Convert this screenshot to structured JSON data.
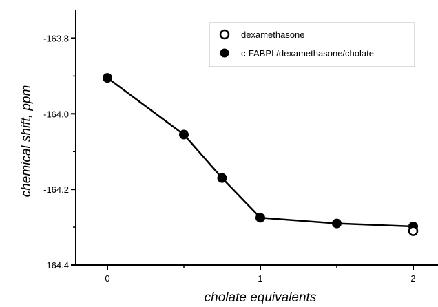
{
  "chart_data": {
    "type": "scatter",
    "title": "",
    "xlabel": "cholate equivalents",
    "ylabel": "chemical shift, ppm",
    "xlim": [
      -0.1,
      2.15
    ],
    "ylim": [
      -164.4,
      -163.75
    ],
    "x_ticks": [
      0,
      1,
      2
    ],
    "x_tick_labels": [
      "0",
      "1",
      "2"
    ],
    "y_ticks": [
      -164.4,
      -164.2,
      -164.0,
      -163.8
    ],
    "y_tick_labels": [
      "-164.4",
      "-164.2",
      "-164.0",
      "-163.8"
    ],
    "y_minor_ticks": [
      -164.3,
      -164.1,
      -163.9
    ],
    "x_minor_ticks": [
      0.5,
      1.5
    ],
    "grid": false,
    "legend_position": "top-right",
    "series": [
      {
        "name": "dexamethasone",
        "marker": "open-circle",
        "line": false,
        "color": "#000000",
        "x": [
          2.0
        ],
        "y": [
          -164.31
        ]
      },
      {
        "name": "c-FABPL/dexamethasone/cholate",
        "marker": "filled-circle",
        "line": true,
        "color": "#000000",
        "x": [
          0,
          0.5,
          0.75,
          1.0,
          1.5,
          2.0
        ],
        "y": [
          -163.905,
          -164.055,
          -164.17,
          -164.275,
          -164.29,
          -164.298
        ]
      }
    ]
  }
}
